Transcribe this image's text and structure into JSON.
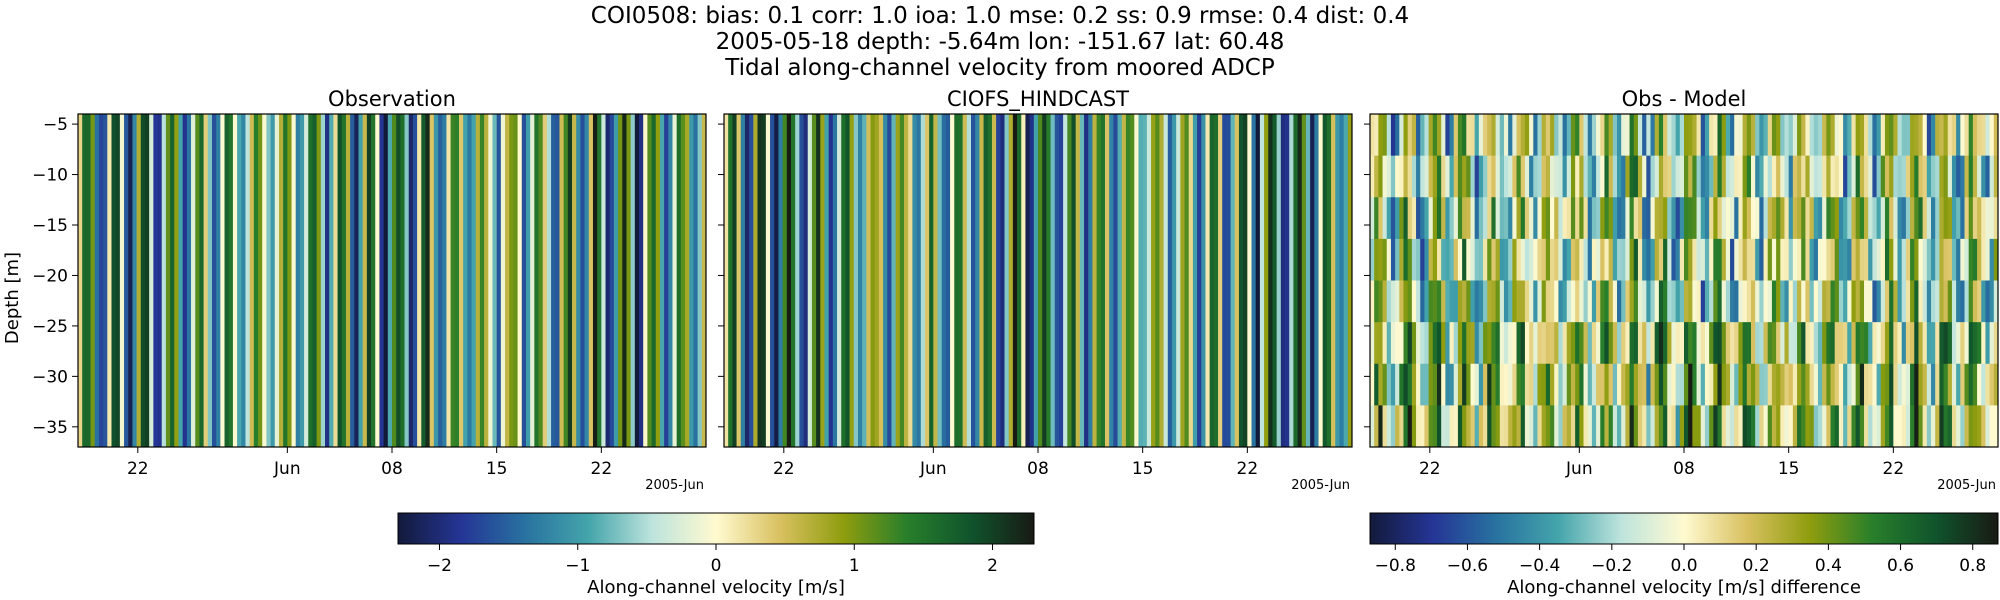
{
  "figure": {
    "title_lines": [
      "COI0508: bias: 0.1  corr: 1.0  ioa: 1.0  mse: 0.2  ss: 0.9  rmse: 0.4  dist: 0.4",
      "2005-05-18 depth: -5.64m lon: -151.67 lat: 60.48",
      "Tidal along-channel velocity from moored ADCP"
    ]
  },
  "chart_data": [
    {
      "type": "heatmap",
      "title": "Observation",
      "ylabel": "Depth [m]",
      "ylim": [
        -37,
        -4
      ],
      "yticks": [
        -5,
        -10,
        -15,
        -20,
        -25,
        -30,
        -35
      ],
      "xlim": [
        "2005-05-18",
        "2005-06-29"
      ],
      "xticks": [
        {
          "date": "2005-05-22",
          "label": "22"
        },
        {
          "date": "2005-06-01",
          "label": "Jun"
        },
        {
          "date": "2005-06-08",
          "label": "08"
        },
        {
          "date": "2005-06-15",
          "label": "15"
        },
        {
          "date": "2005-06-22",
          "label": "22"
        }
      ],
      "x_offset_label": "2005-Jun",
      "colorbar": "velocity",
      "pattern": "tidal_stripes",
      "value_range": [
        -2.3,
        2.3
      ]
    },
    {
      "type": "heatmap",
      "title": "CIOFS_HINDCAST",
      "ylim": [
        -37,
        -4
      ],
      "yticks": [
        -5,
        -10,
        -15,
        -20,
        -25,
        -30,
        -35
      ],
      "xlim": [
        "2005-05-18",
        "2005-06-29"
      ],
      "xticks": [
        {
          "date": "2005-05-22",
          "label": "22"
        },
        {
          "date": "2005-06-01",
          "label": "Jun"
        },
        {
          "date": "2005-06-08",
          "label": "08"
        },
        {
          "date": "2005-06-15",
          "label": "15"
        },
        {
          "date": "2005-06-22",
          "label": "22"
        }
      ],
      "x_offset_label": "2005-Jun",
      "colorbar": "velocity",
      "pattern": "tidal_stripes",
      "value_range": [
        -2.3,
        2.3
      ]
    },
    {
      "type": "heatmap",
      "title": "Obs - Model",
      "ylim": [
        -37,
        -4
      ],
      "yticks": [
        -5,
        -10,
        -15,
        -20,
        -25,
        -30,
        -35
      ],
      "xlim": [
        "2005-05-18",
        "2005-06-29"
      ],
      "xticks": [
        {
          "date": "2005-05-22",
          "label": "22"
        },
        {
          "date": "2005-06-01",
          "label": "Jun"
        },
        {
          "date": "2005-06-08",
          "label": "08"
        },
        {
          "date": "2005-06-15",
          "label": "15"
        },
        {
          "date": "2005-06-22",
          "label": "22"
        }
      ],
      "x_offset_label": "2005-Jun",
      "colorbar": "difference",
      "pattern": "difference_stripes",
      "value_range": [
        -0.87,
        0.87
      ]
    }
  ],
  "colorbars": [
    {
      "id": "velocity",
      "label": "Along-channel velocity [m/s]",
      "range": [
        -2.3,
        2.3
      ],
      "ticks": [
        {
          "value": -2,
          "label": "−2"
        },
        {
          "value": -1,
          "label": "−1"
        },
        {
          "value": 0,
          "label": "0"
        },
        {
          "value": 1,
          "label": "1"
        },
        {
          "value": 2,
          "label": "2"
        }
      ]
    },
    {
      "id": "difference",
      "label": "Along-channel velocity [m/s] difference",
      "range": [
        -0.87,
        0.87
      ],
      "ticks": [
        {
          "value": -0.8,
          "label": "−0.8"
        },
        {
          "value": -0.6,
          "label": "−0.6"
        },
        {
          "value": -0.4,
          "label": "−0.4"
        },
        {
          "value": -0.2,
          "label": "−0.2"
        },
        {
          "value": 0.0,
          "label": "0.0"
        },
        {
          "value": 0.2,
          "label": "0.2"
        },
        {
          "value": 0.4,
          "label": "0.4"
        },
        {
          "value": 0.6,
          "label": "0.6"
        },
        {
          "value": 0.8,
          "label": "0.8"
        }
      ]
    }
  ],
  "colormap": {
    "name": "delta",
    "stops": [
      "#121a3a",
      "#253596",
      "#2872a0",
      "#44a5ab",
      "#bee4dd",
      "#fffad0",
      "#d9c161",
      "#8f9d0e",
      "#287f2b",
      "#10542c",
      "#181a14"
    ]
  }
}
